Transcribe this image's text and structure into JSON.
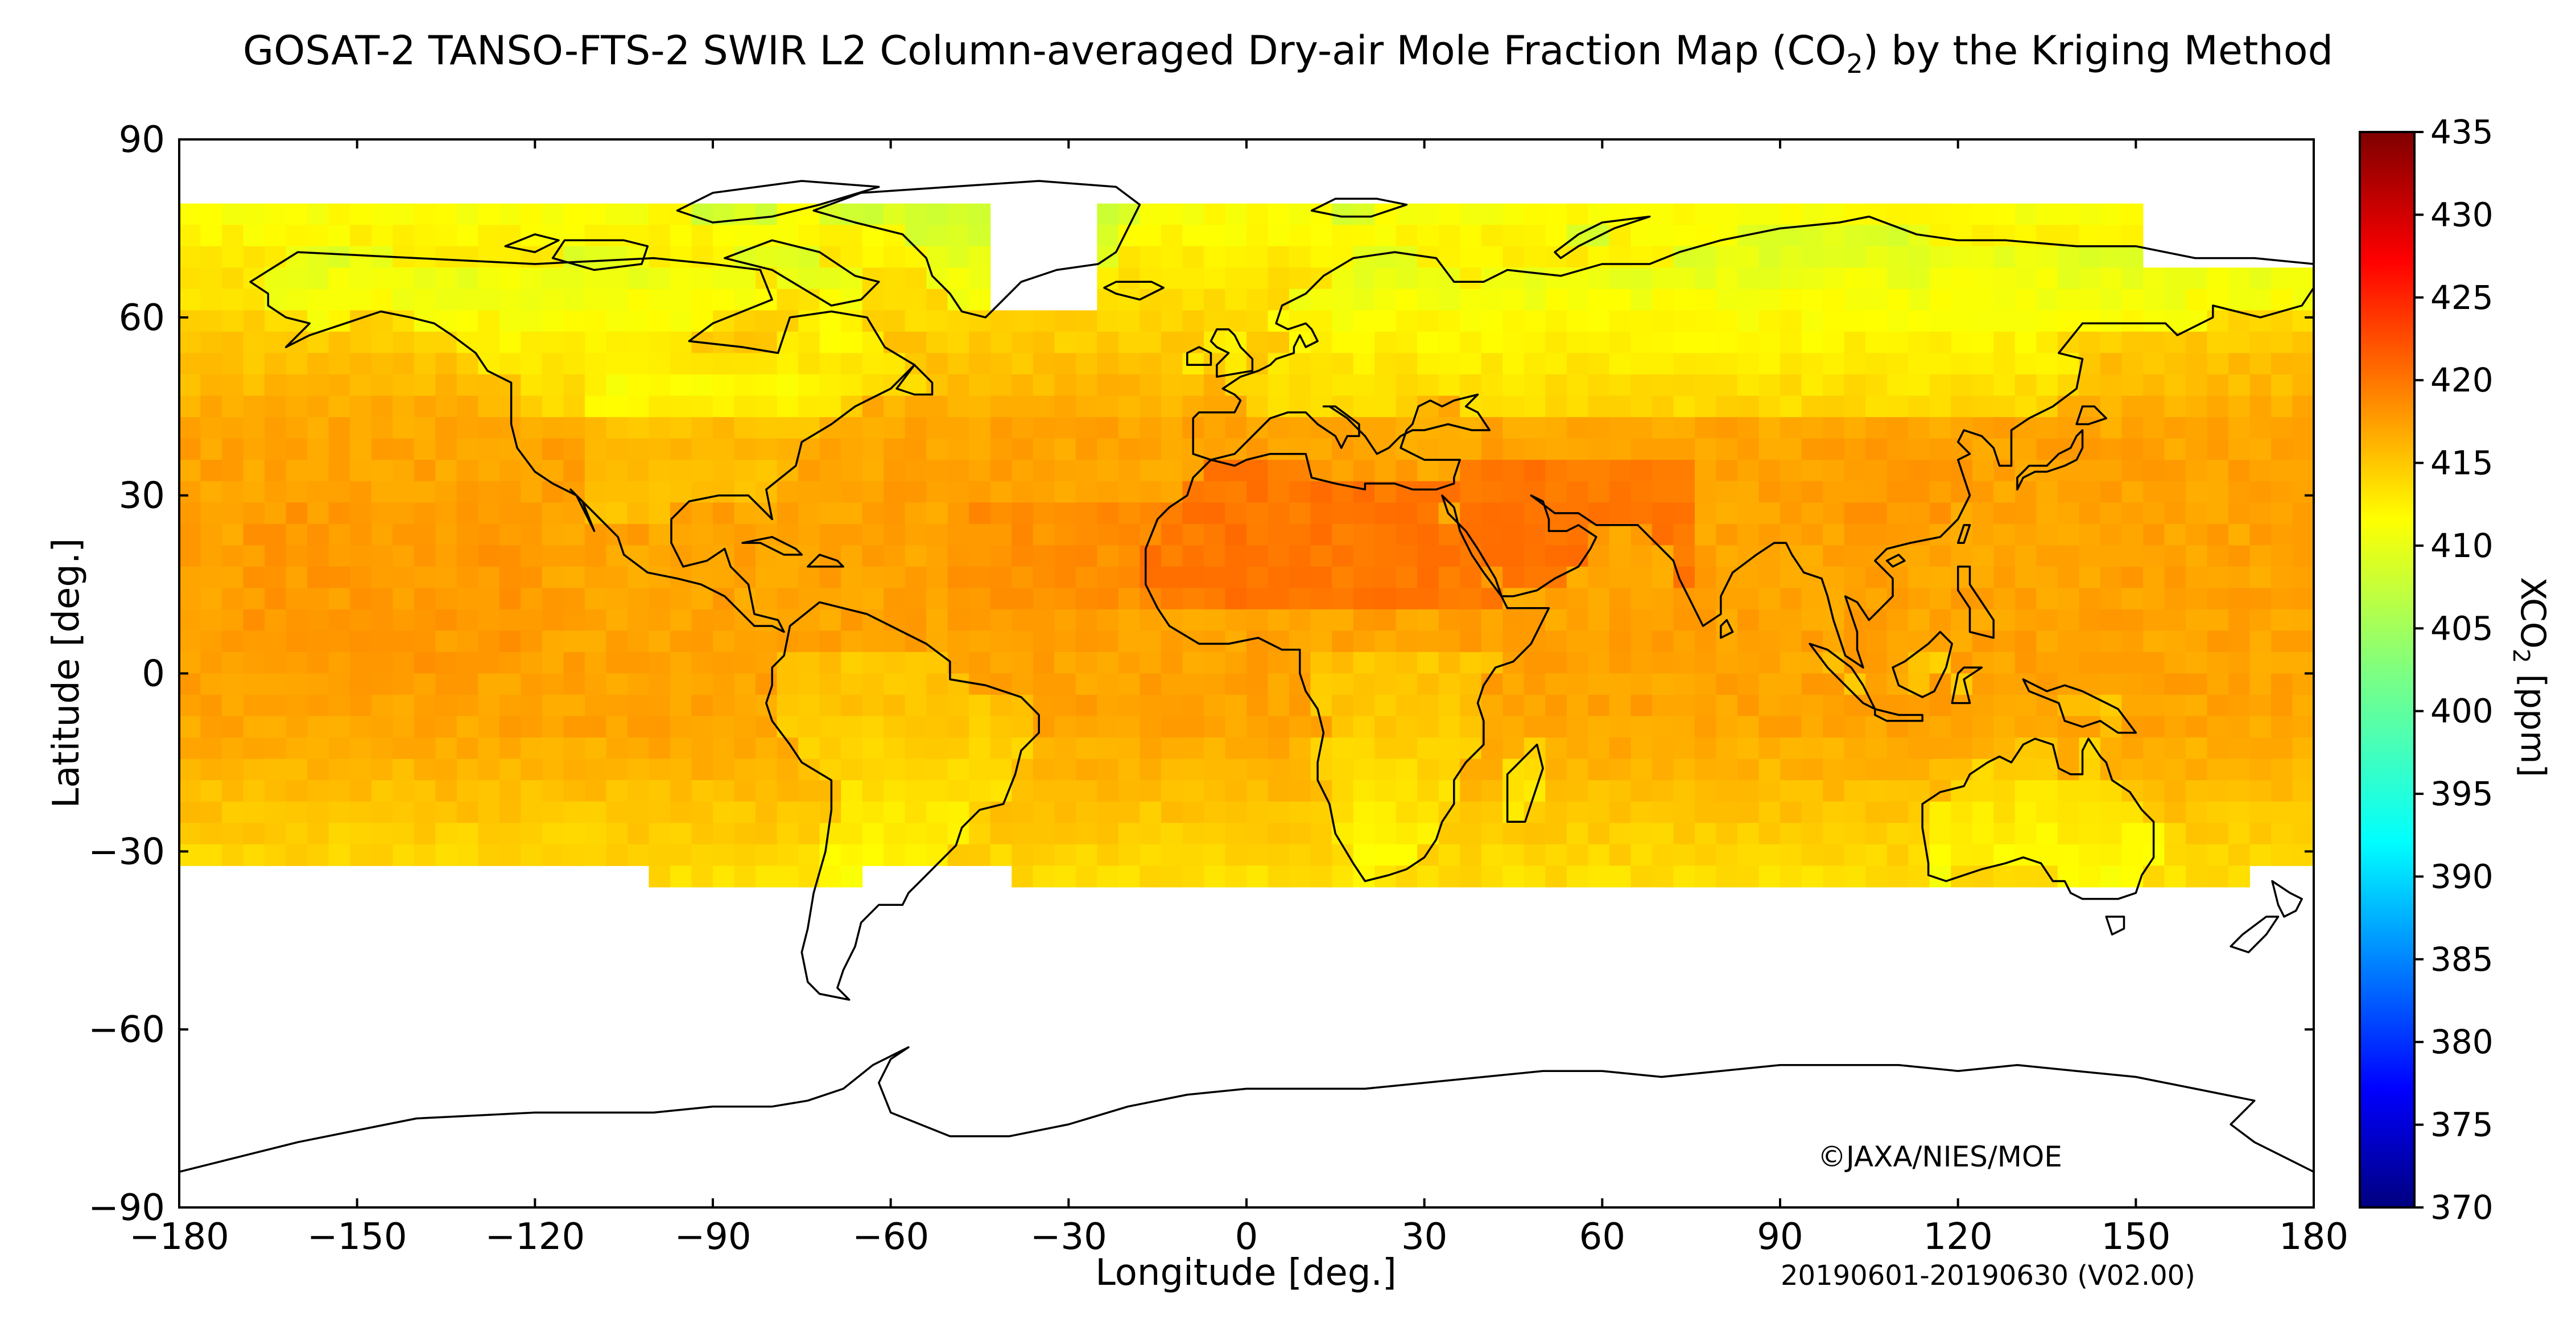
{
  "title": {
    "prefix": "GOSAT-2 TANSO-FTS-2 SWIR L2 Column-averaged Dry-air Mole Fraction Map (CO",
    "subscript": "2",
    "suffix": ") by the Kriging Method"
  },
  "axes": {
    "x_label": "Longitude [deg.]",
    "y_label": "Latitude [deg.]",
    "x_ticks": [
      "−180",
      "−150",
      "−120",
      "−90",
      "−60",
      "−30",
      "0",
      "30",
      "60",
      "90",
      "120",
      "150",
      "180"
    ],
    "x_values": [
      -180,
      -150,
      -120,
      -90,
      -60,
      -30,
      0,
      30,
      60,
      90,
      120,
      150,
      180
    ],
    "y_ticks": [
      "90",
      "60",
      "30",
      "0",
      "−30",
      "−60",
      "−90"
    ],
    "y_values": [
      90,
      60,
      30,
      0,
      -30,
      -60,
      -90
    ],
    "lon_range": [
      -180,
      180
    ],
    "lat_range": [
      -90,
      90
    ]
  },
  "colorbar": {
    "label_prefix": "XCO",
    "label_sub": "2",
    "label_suffix": " [ppm]",
    "min": 370,
    "max": 435,
    "ticks": [
      "435",
      "430",
      "425",
      "420",
      "415",
      "410",
      "405",
      "400",
      "395",
      "390",
      "385",
      "380",
      "375",
      "370"
    ],
    "tick_values": [
      435,
      430,
      425,
      420,
      415,
      410,
      405,
      400,
      395,
      390,
      385,
      380,
      375,
      370
    ],
    "colormap": "jet"
  },
  "copyright": "©JAXA/NIES/MOE",
  "period": "20190601-20190630 (V02.00)",
  "map_data": {
    "type": "gridded-map",
    "variable": "XCO2",
    "units": "ppm",
    "coverage_lat": [
      -36,
      78
    ],
    "typical_values": {
      "saharan_arabian_max": 420,
      "tropical_ocean": 416,
      "southern_hemisphere": 412,
      "boreal_land_min": 407
    },
    "no_data_regions": [
      "high southern latitudes south of ~36S",
      "Antarctica",
      "central Greenland"
    ],
    "colors": {
      "background": "#ffffff",
      "coastline": "#000000",
      "no_data": "#ffffff"
    }
  }
}
